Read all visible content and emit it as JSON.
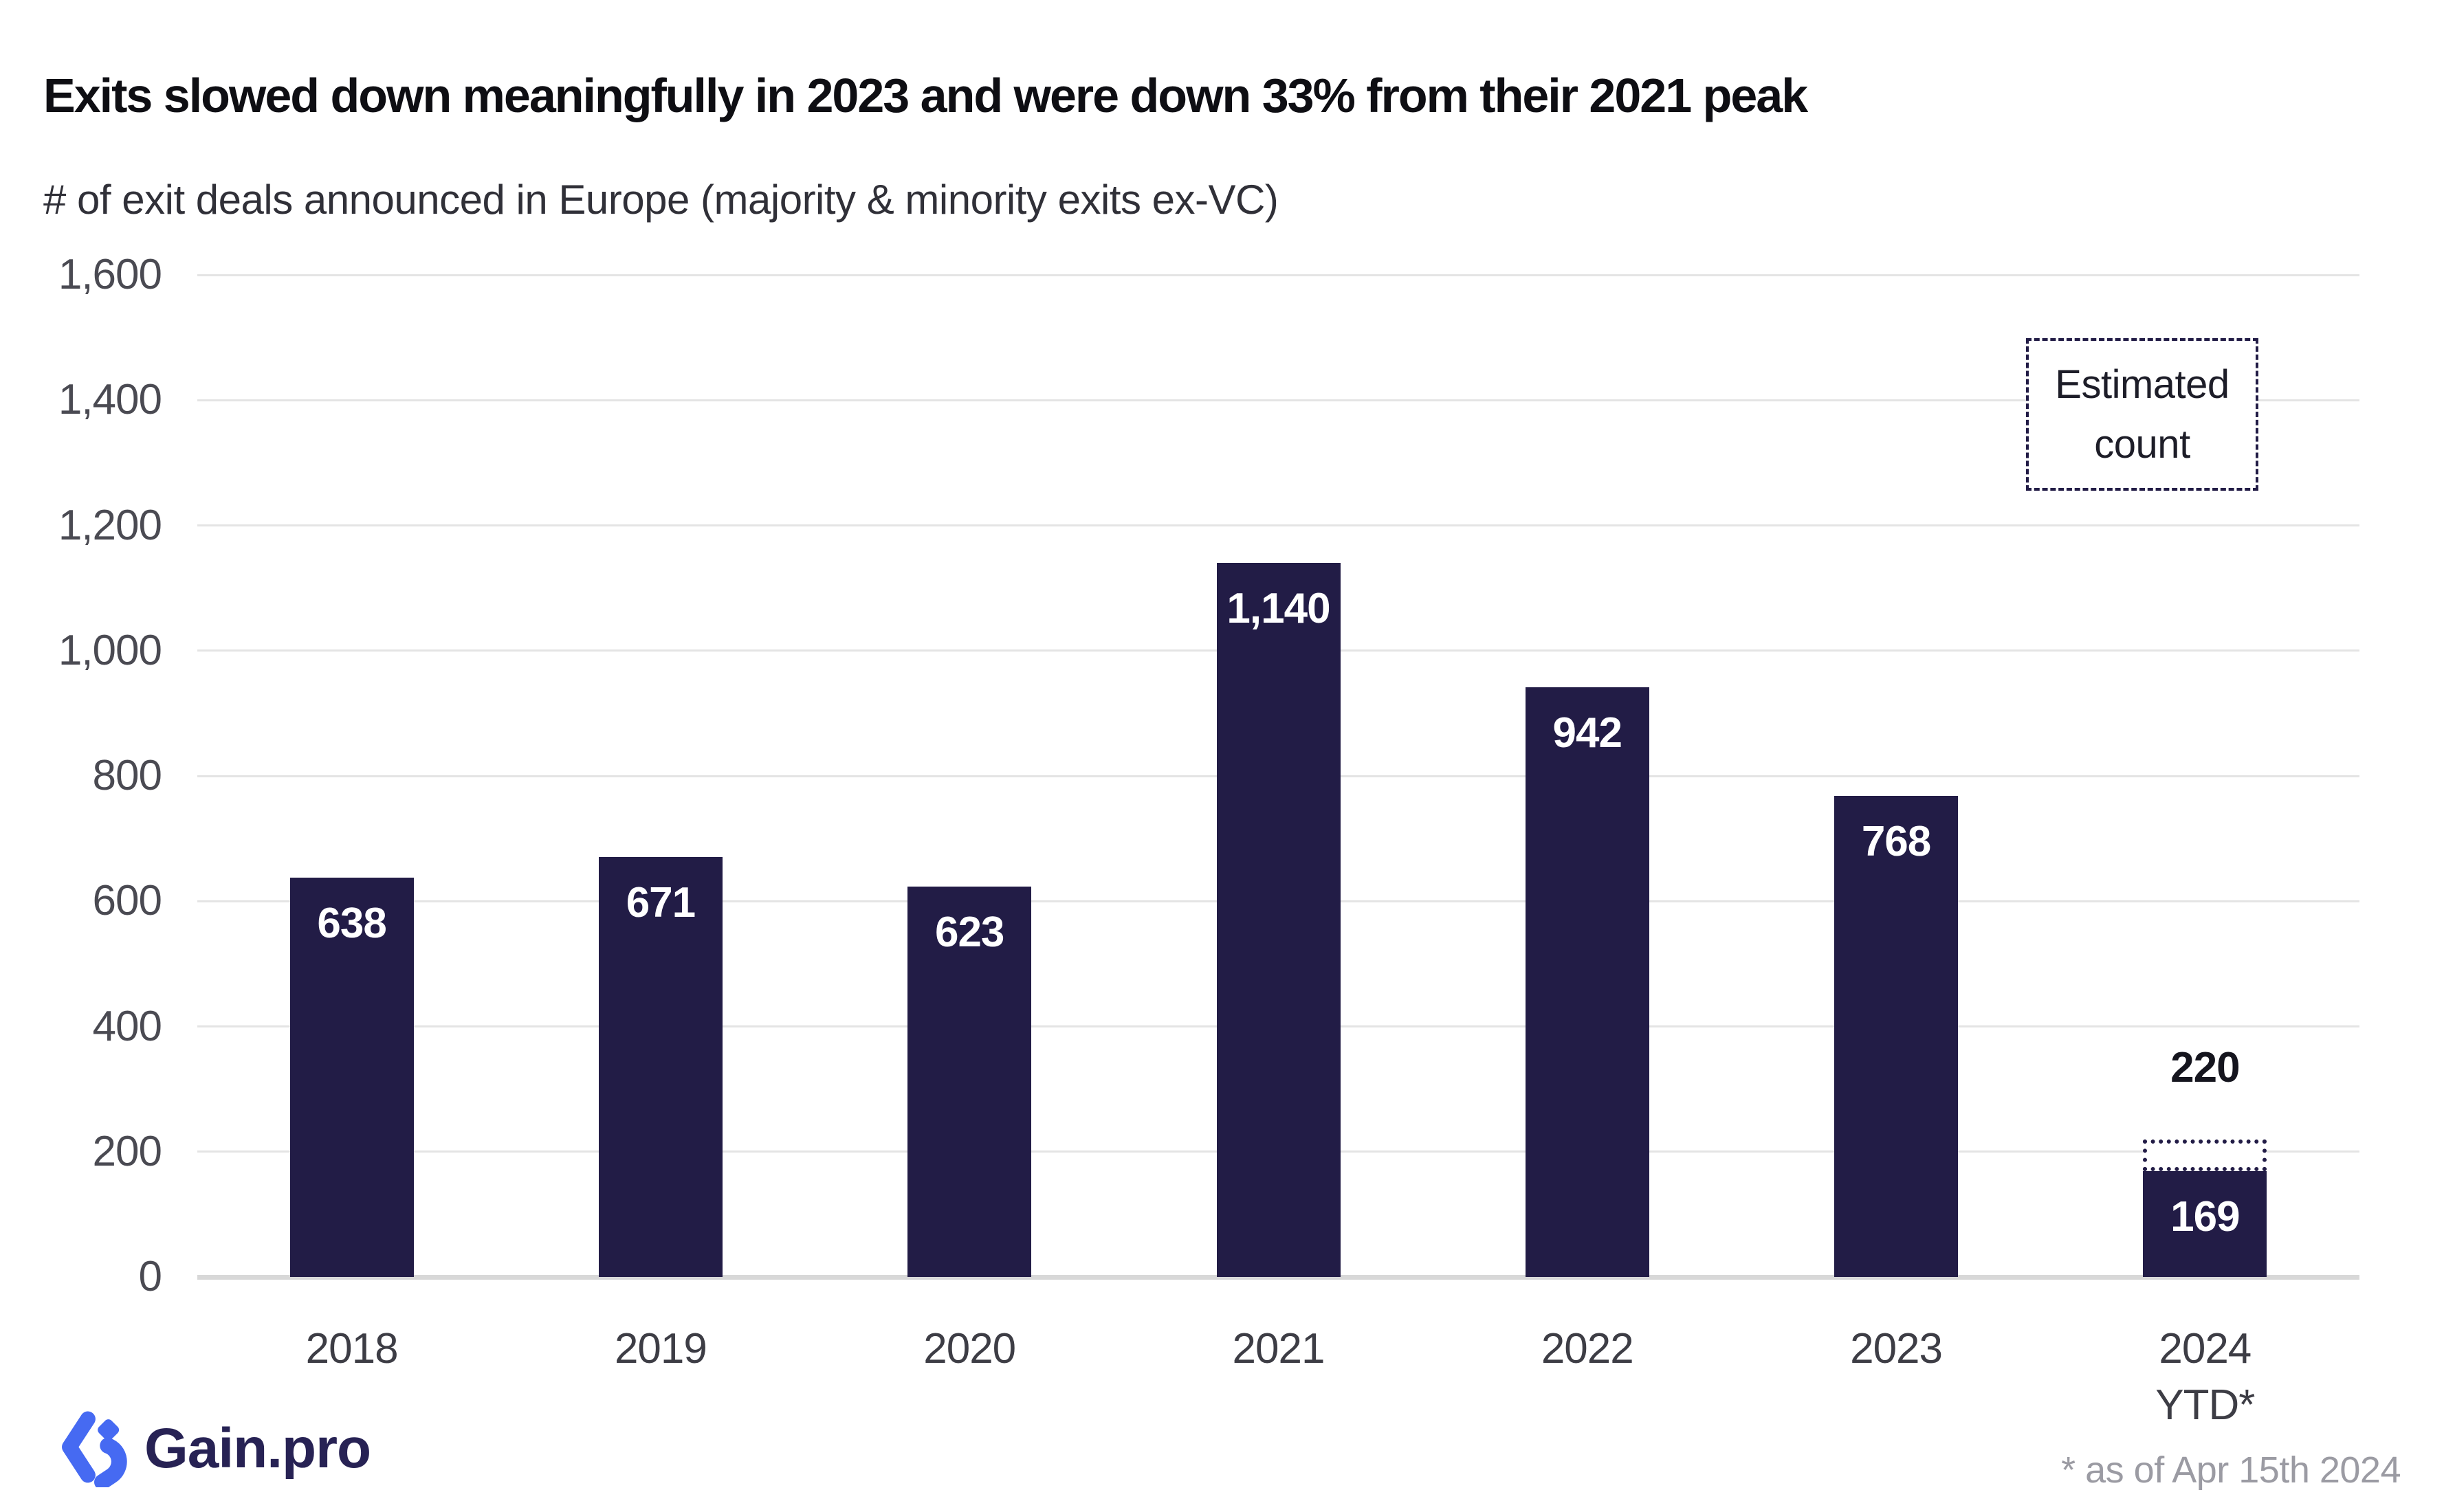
{
  "header": {
    "title": "Exits slowed down meaningfully in 2023 and were down 33% from their 2021 peak",
    "subtitle": "# of exit deals announced in Europe (majority & minority exits ex-VC)"
  },
  "chart_data": {
    "type": "bar",
    "title": "Exits slowed down meaningfully in 2023 and were down 33% from their 2021 peak",
    "subtitle": "# of exit deals announced in Europe (majority & minority exits ex-VC)",
    "categories": [
      [
        "2018"
      ],
      [
        "2019"
      ],
      [
        "2020"
      ],
      [
        "2021"
      ],
      [
        "2022"
      ],
      [
        "2023"
      ],
      [
        "2024",
        "YTD*"
      ]
    ],
    "values": [
      638,
      671,
      623,
      1140,
      942,
      768,
      169
    ],
    "value_labels": [
      "638",
      "671",
      "623",
      "1,140",
      "942",
      "768",
      "169"
    ],
    "estimated": {
      "category_index": 6,
      "value": 220,
      "label": "220",
      "style": "dotted-outline"
    },
    "xlabel": "",
    "ylabel": "",
    "ylim": [
      0,
      1600
    ],
    "yticks": [
      0,
      200,
      400,
      600,
      800,
      1000,
      1200,
      1400,
      1600
    ],
    "ytick_labels": [
      "0",
      "200",
      "400",
      "600",
      "800",
      "1,000",
      "1,200",
      "1,400",
      "1,600"
    ],
    "grid": "horizontal",
    "legend": {
      "label": "Estimated count",
      "position": "top-right"
    },
    "bar_color": "#221c46"
  },
  "legend": {
    "line1": "Estimated",
    "line2": "count"
  },
  "footer": {
    "logo_text": "Gain.pro",
    "footnote": "* as of Apr 15th 2024"
  },
  "colors": {
    "bar": "#221c46",
    "grid": "#e4e4e4",
    "baseline": "#d8d8d8",
    "axis_text": "#4a4a52",
    "title": "#0e0e13",
    "subtitle": "#303038",
    "footnote": "#9b9ba3",
    "value_label": "#ffffff",
    "estimated_label": "#15151e",
    "logo_blue": "#466af2",
    "logo_navy": "#272254"
  }
}
